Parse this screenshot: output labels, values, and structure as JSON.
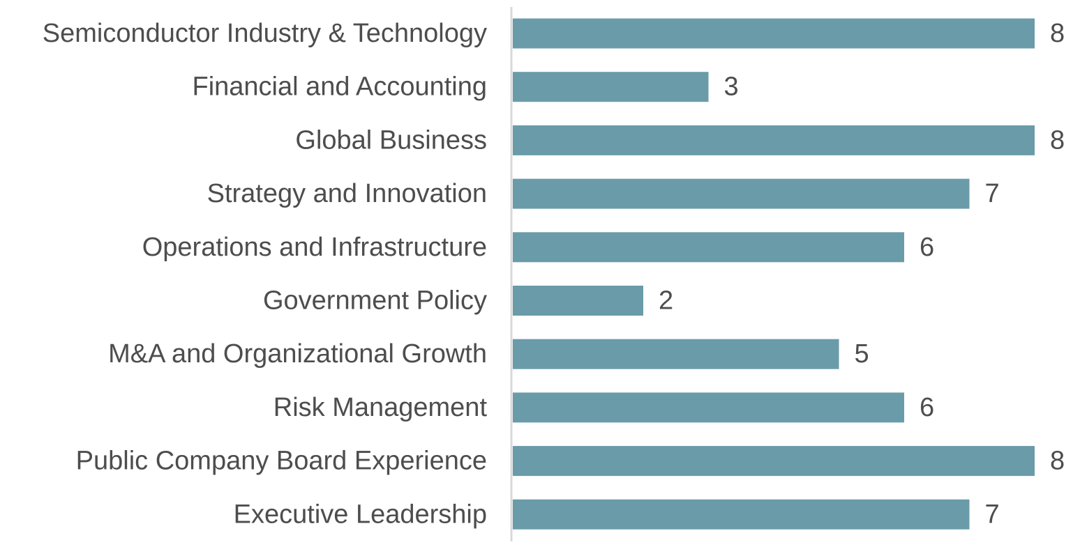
{
  "chart_data": {
    "type": "bar",
    "orientation": "horizontal",
    "categories": [
      "Semiconductor Industry & Technology",
      "Financial and Accounting",
      "Global Business",
      "Strategy and Innovation",
      "Operations and Infrastructure",
      "Government Policy",
      "M&A and Organizational Growth",
      "Risk Management",
      "Public Company Board Experience",
      "Executive Leadership"
    ],
    "values": [
      8,
      3,
      8,
      7,
      6,
      2,
      5,
      6,
      8,
      7
    ],
    "data_labels": [
      "8",
      "3",
      "8",
      "7",
      "6",
      "2",
      "5",
      "6",
      "8",
      "7"
    ],
    "xlim": [
      0,
      8
    ],
    "grid": false,
    "legend": "none",
    "colors": {
      "bar": "#6a9ba9",
      "text": "#4d4d4d",
      "axis": "#d9d9d9"
    }
  }
}
